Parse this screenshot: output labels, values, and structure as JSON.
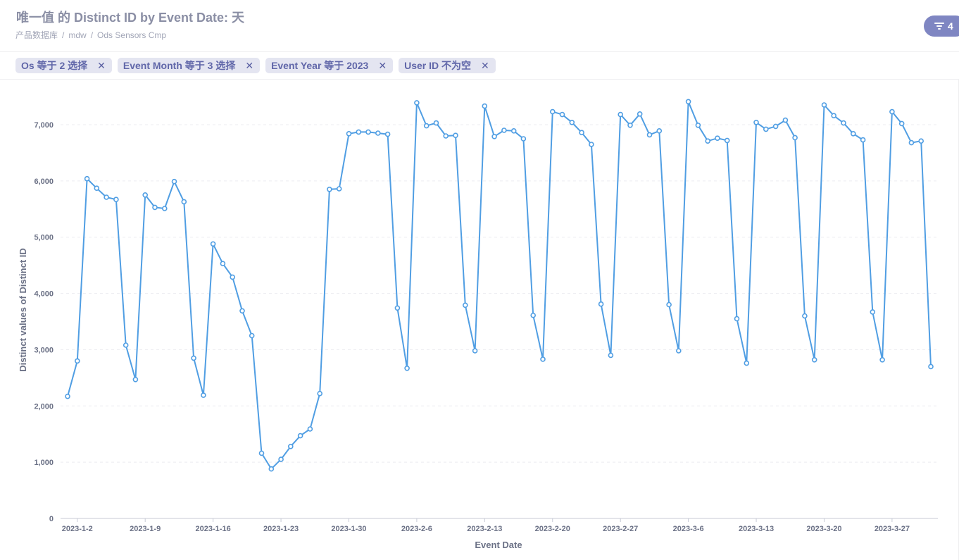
{
  "header": {
    "title": "唯一值 的 Distinct ID by Event Date: 天",
    "breadcrumb": [
      "产品数据库",
      "mdw",
      "Ods Sensors Cmp"
    ],
    "filter_count": "4"
  },
  "filters": [
    {
      "label": "Os 等于 2 选择"
    },
    {
      "label": "Event Month 等于 3 选择"
    },
    {
      "label": "Event Year 等于 2023"
    },
    {
      "label": "User ID 不为空"
    }
  ],
  "colors": {
    "line": "#509ee3",
    "accent": "#7f86c2",
    "pill_bg": "#e4e5f1",
    "pill_text": "#6167a9"
  },
  "chart_data": {
    "type": "line",
    "xlabel": "Event Date",
    "ylabel": "Distinct values of Distinct ID",
    "ylim": [
      0,
      7500
    ],
    "yticks": [
      0,
      1000,
      2000,
      3000,
      4000,
      5000,
      6000,
      7000
    ],
    "ytick_labels": [
      "0",
      "1,000",
      "2,000",
      "3,000",
      "4,000",
      "5,000",
      "6,000",
      "7,000"
    ],
    "xtick_labels": [
      "2023-1-2",
      "2023-1-9",
      "2023-1-16",
      "2023-1-23",
      "2023-1-30",
      "2023-2-6",
      "2023-2-13",
      "2023-2-20",
      "2023-2-27",
      "2023-3-6",
      "2023-3-13",
      "2023-3-20",
      "2023-3-27"
    ],
    "x_start": "2023-1-1",
    "x_end": "2023-3-31",
    "grid": true,
    "series": [
      {
        "values": [
          2170,
          2800,
          6040,
          5870,
          5710,
          5670,
          3080,
          2470,
          5750,
          5530,
          5510,
          5990,
          5630,
          2850,
          2190,
          4880,
          4530,
          4290,
          3690,
          3250,
          1160,
          880,
          1050,
          1280,
          1470,
          1590,
          2220,
          5850,
          5860,
          6840,
          6870,
          6870,
          6850,
          6830,
          3740,
          2670,
          7390,
          6980,
          7030,
          6800,
          6810,
          3790,
          2980,
          7330,
          6790,
          6900,
          6890,
          6750,
          3610,
          2830,
          7230,
          7180,
          7040,
          6860,
          6650,
          3810,
          2900,
          7180,
          6990,
          7190,
          6820,
          6890,
          3800,
          2980,
          7410,
          6990,
          6710,
          6760,
          6720,
          3550,
          2760,
          7040,
          6920,
          6970,
          7080,
          6770,
          3600,
          2820,
          7350,
          7160,
          7030,
          6840,
          6730,
          3670,
          2820,
          7230,
          7020,
          6680,
          6710,
          2700
        ]
      }
    ]
  }
}
